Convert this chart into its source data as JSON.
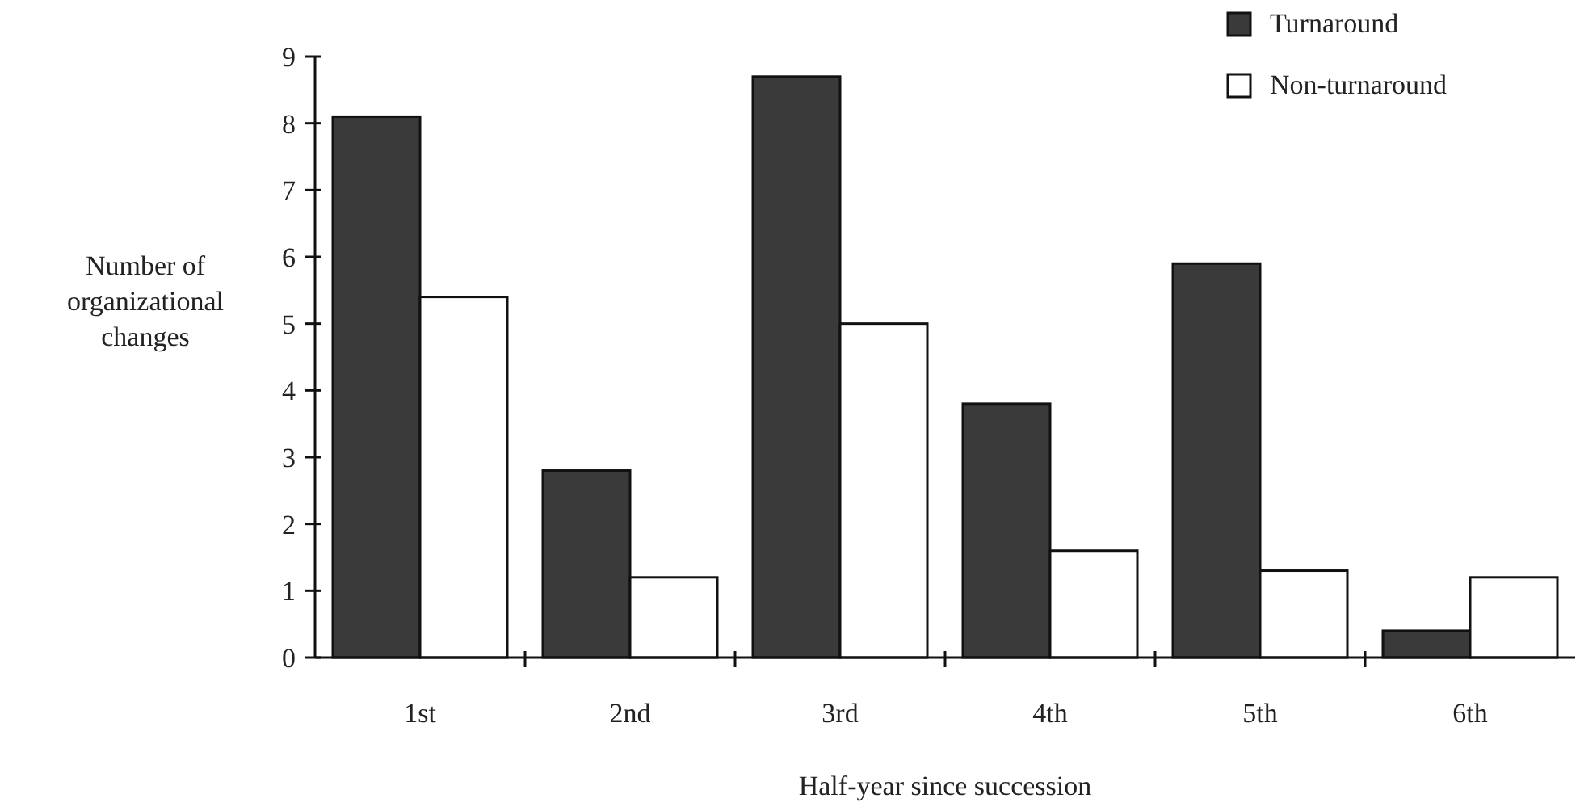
{
  "chart_data": {
    "type": "bar",
    "xlabel": "Half-year since succession",
    "ylabel": "Number of organizational changes",
    "categories": [
      "1st",
      "2nd",
      "3rd",
      "4th",
      "5th",
      "6th"
    ],
    "series": [
      {
        "name": "Turnaround",
        "color": "#3a3a3a",
        "values": [
          8.1,
          2.8,
          8.7,
          3.8,
          5.9,
          0.4
        ]
      },
      {
        "name": "Non-turnaround",
        "color": "#ffffff",
        "values": [
          5.4,
          1.2,
          5.0,
          1.6,
          1.3,
          1.2
        ]
      }
    ],
    "ylim": [
      0,
      9
    ],
    "yticks": [
      0,
      1,
      2,
      3,
      4,
      5,
      6,
      7,
      8,
      9
    ],
    "grid": false,
    "legend": "top right"
  }
}
